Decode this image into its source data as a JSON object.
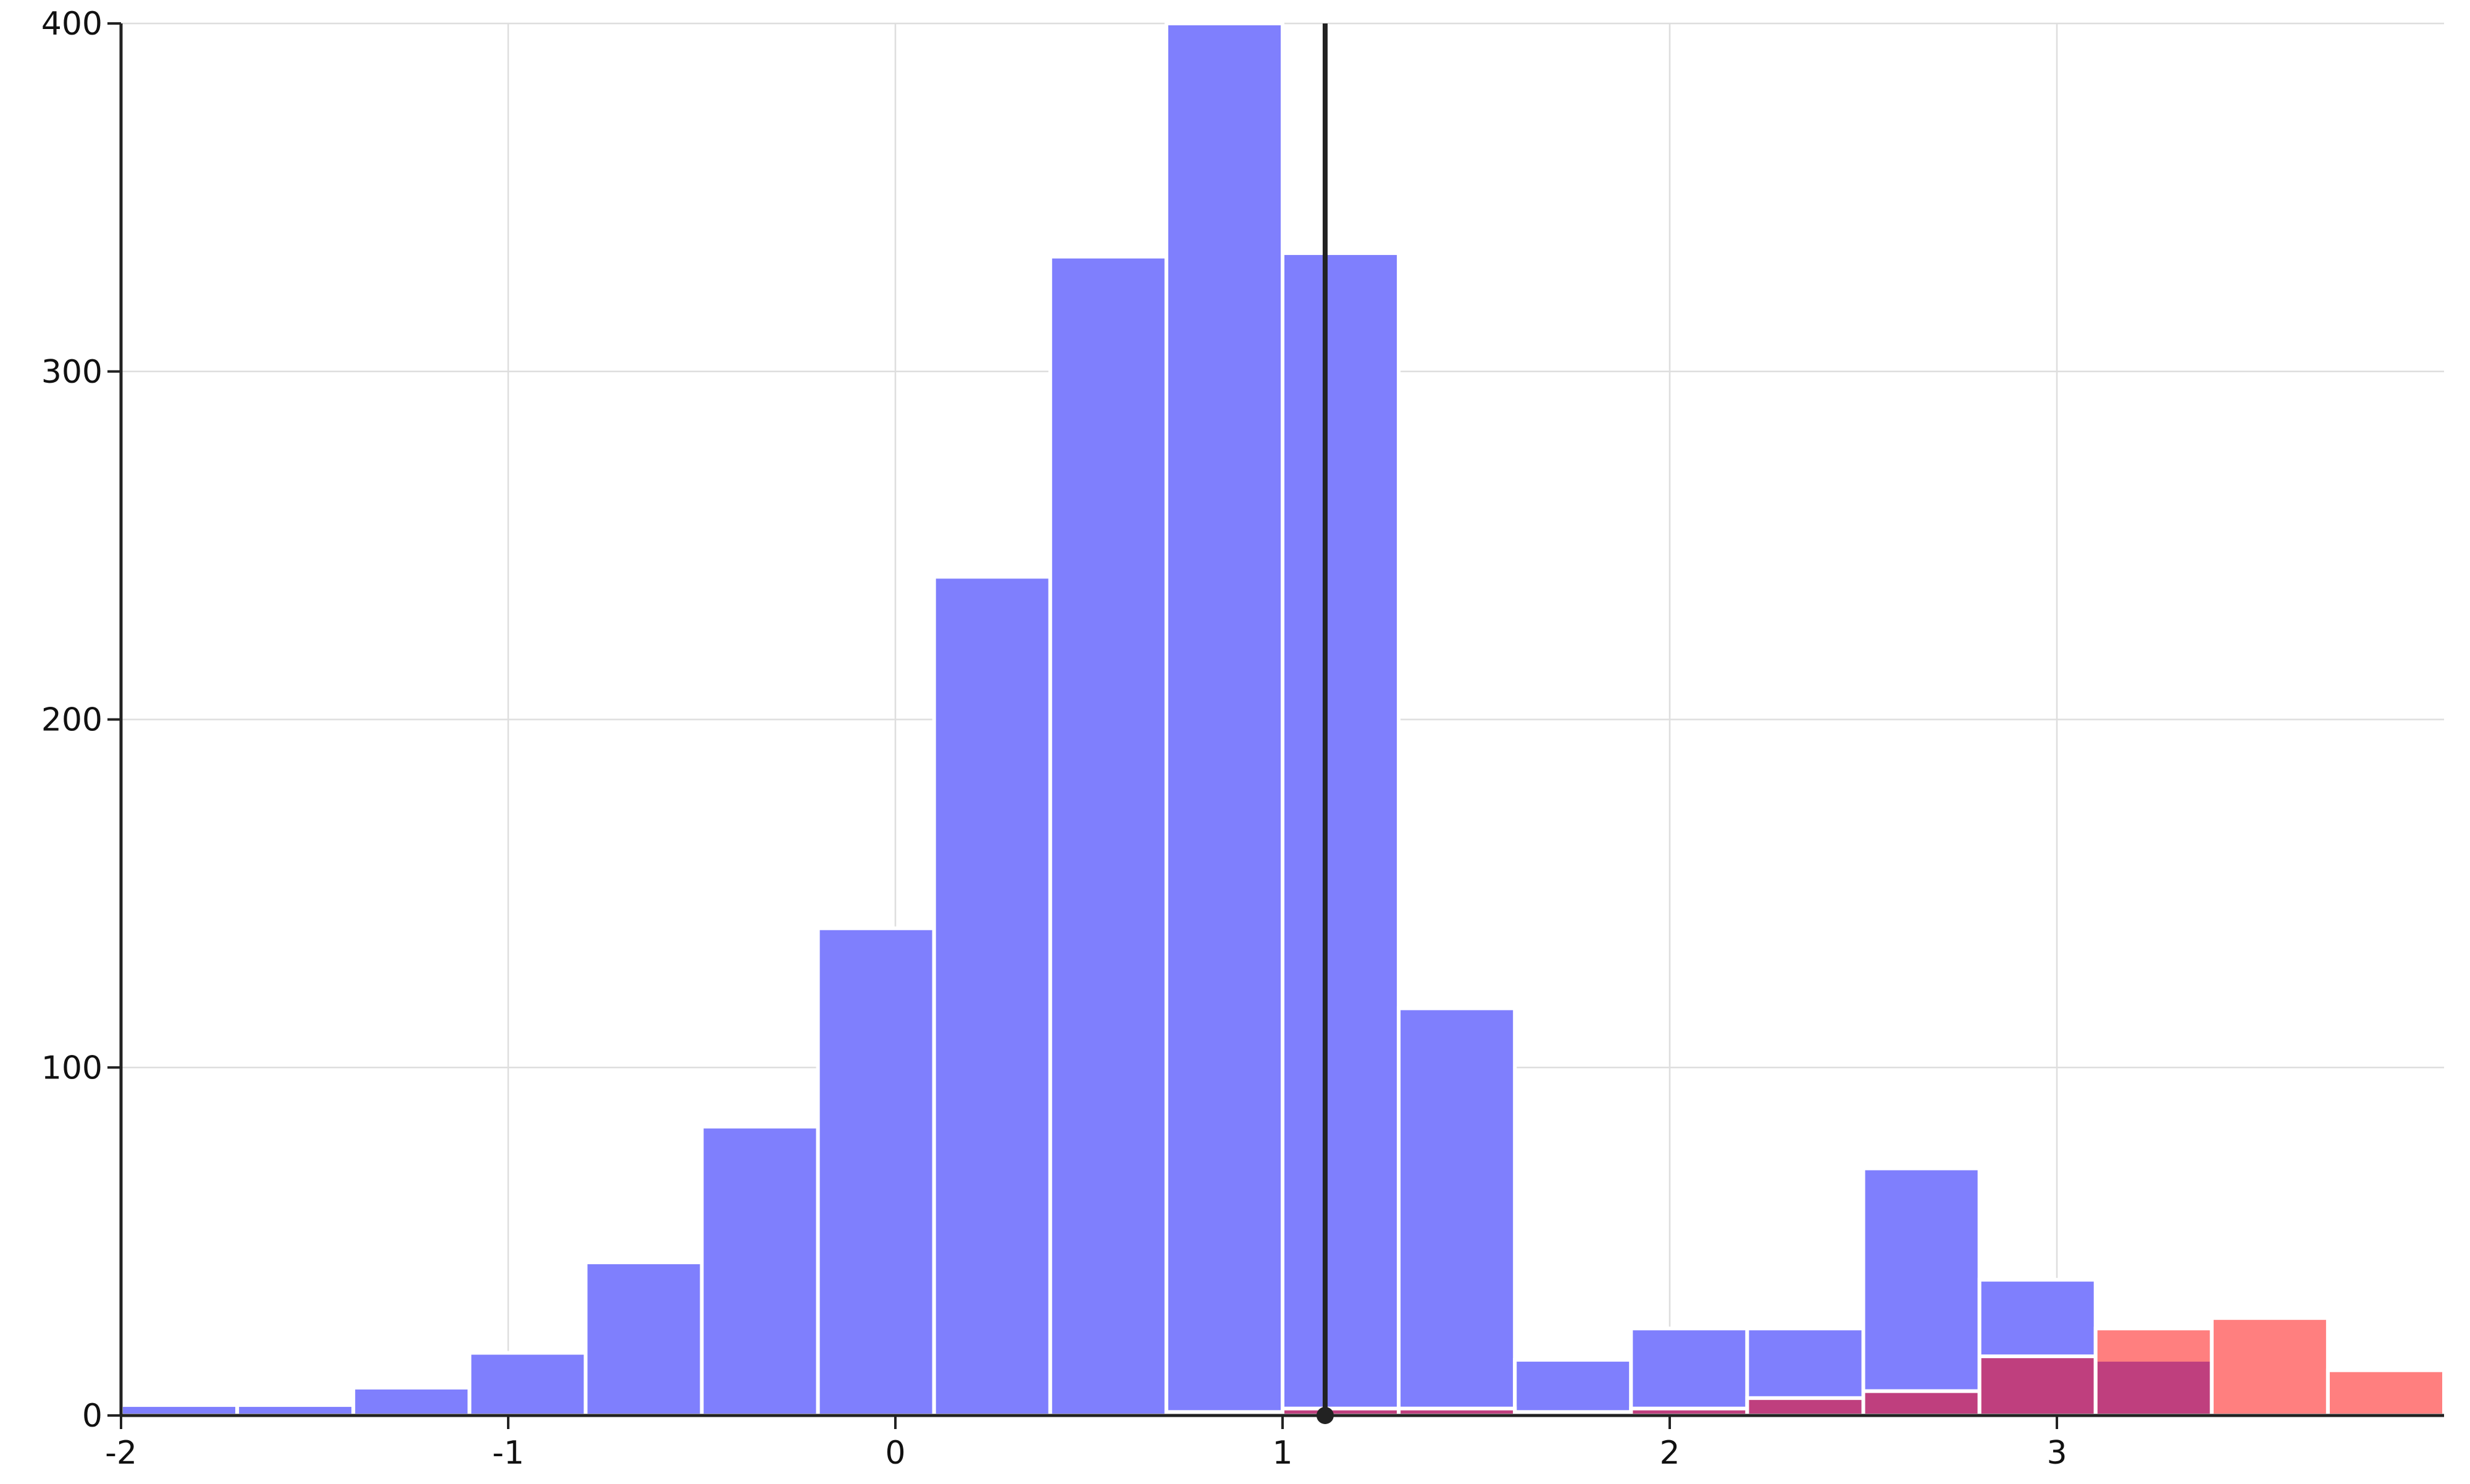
{
  "chart_data": {
    "type": "bar",
    "title": "",
    "xlabel": "",
    "ylabel": "",
    "xlim": [
      -2,
      4
    ],
    "ylim": [
      0,
      400
    ],
    "x_ticks": [
      "-2",
      "-1",
      "0",
      "1",
      "2",
      "3"
    ],
    "y_ticks": [
      "0",
      "100",
      "200",
      "300",
      "400"
    ],
    "grid": true,
    "bin_edges": [
      -2.0,
      -1.7,
      -1.4,
      -1.1,
      -0.8,
      -0.5,
      -0.2,
      0.1,
      0.4,
      0.7,
      1.0,
      1.3,
      1.6,
      1.9,
      2.2,
      2.5,
      2.8,
      3.1,
      3.4,
      3.7,
      4.0
    ],
    "series": [
      {
        "color": "#7f7ffd",
        "opacity": 1.0,
        "values": [
          3,
          3,
          8,
          18,
          44,
          83,
          140,
          241,
          333,
          400,
          334,
          117,
          16,
          25,
          25,
          71,
          39,
          16,
          1,
          0
        ]
      },
      {
        "color": "#ff0000",
        "opacity": 0.5,
        "values": [
          0,
          0,
          0,
          0,
          0,
          0,
          0,
          0,
          0,
          1,
          2,
          2,
          1,
          2,
          5,
          7,
          17,
          25,
          28,
          13
        ]
      }
    ],
    "reference_line": {
      "x": 1.11,
      "color": "#222222"
    }
  }
}
